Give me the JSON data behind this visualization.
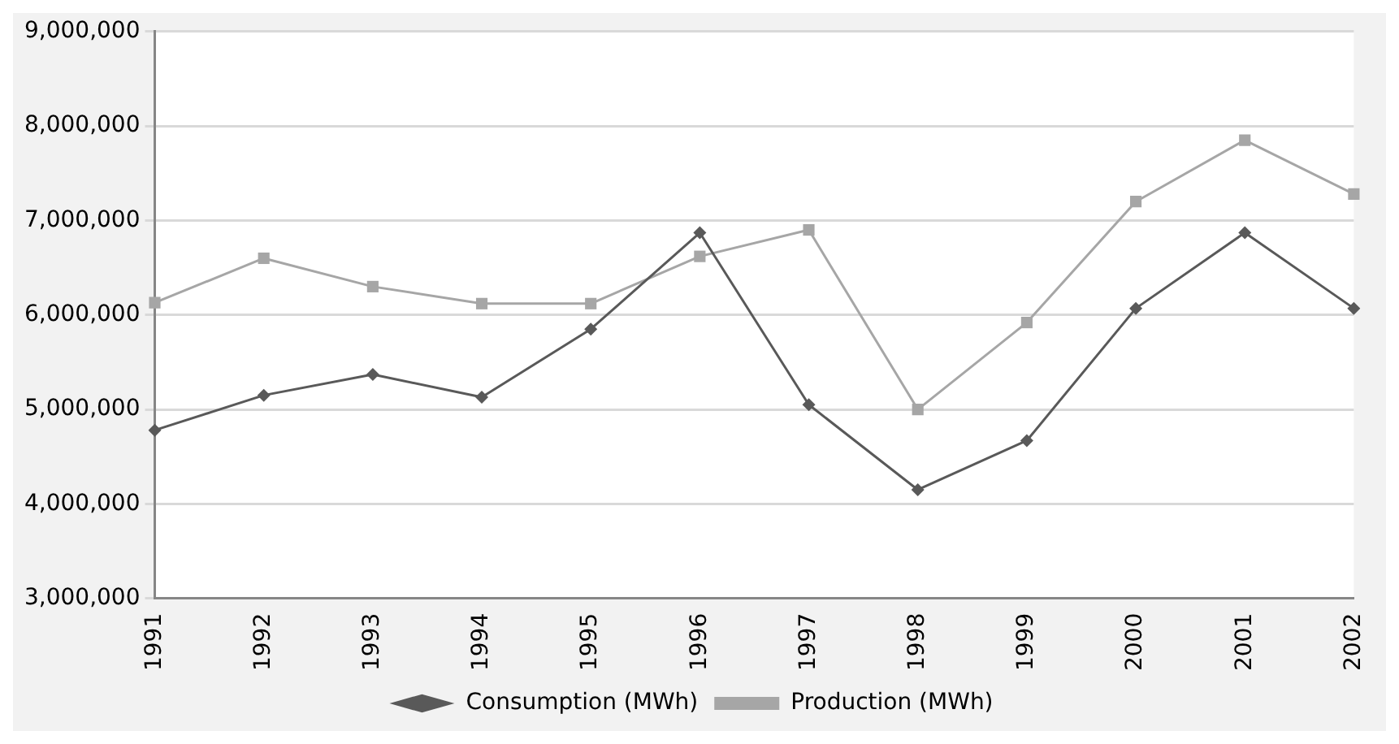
{
  "chart_data": {
    "type": "line",
    "categories": [
      "1991",
      "1992",
      "1993",
      "1994",
      "1995",
      "1996",
      "1997",
      "1998",
      "1999",
      "2000",
      "2001",
      "2002"
    ],
    "series": [
      {
        "name": "Consumption (MWh)",
        "color": "#595959",
        "marker": "diamond",
        "values": [
          4780000,
          5150000,
          5370000,
          5130000,
          5850000,
          6870000,
          5050000,
          4150000,
          4670000,
          6070000,
          6870000,
          6070000
        ]
      },
      {
        "name": "Production (MWh)",
        "color": "#a6a6a6",
        "marker": "square",
        "values": [
          6130000,
          6600000,
          6300000,
          6120000,
          6120000,
          6620000,
          6900000,
          5000000,
          5920000,
          7200000,
          7850000,
          7280000
        ]
      }
    ],
    "ylim": [
      3000000,
      9000000
    ],
    "yticks": [
      {
        "value": 3000000,
        "label": "3,000,000"
      },
      {
        "value": 4000000,
        "label": "4,000,000"
      },
      {
        "value": 5000000,
        "label": "5,000,000"
      },
      {
        "value": 6000000,
        "label": "6,000,000"
      },
      {
        "value": 7000000,
        "label": "7,000,000"
      },
      {
        "value": 8000000,
        "label": "8,000,000"
      },
      {
        "value": 9000000,
        "label": "9,000,000"
      }
    ],
    "grid": "y",
    "legend": "bottom"
  }
}
